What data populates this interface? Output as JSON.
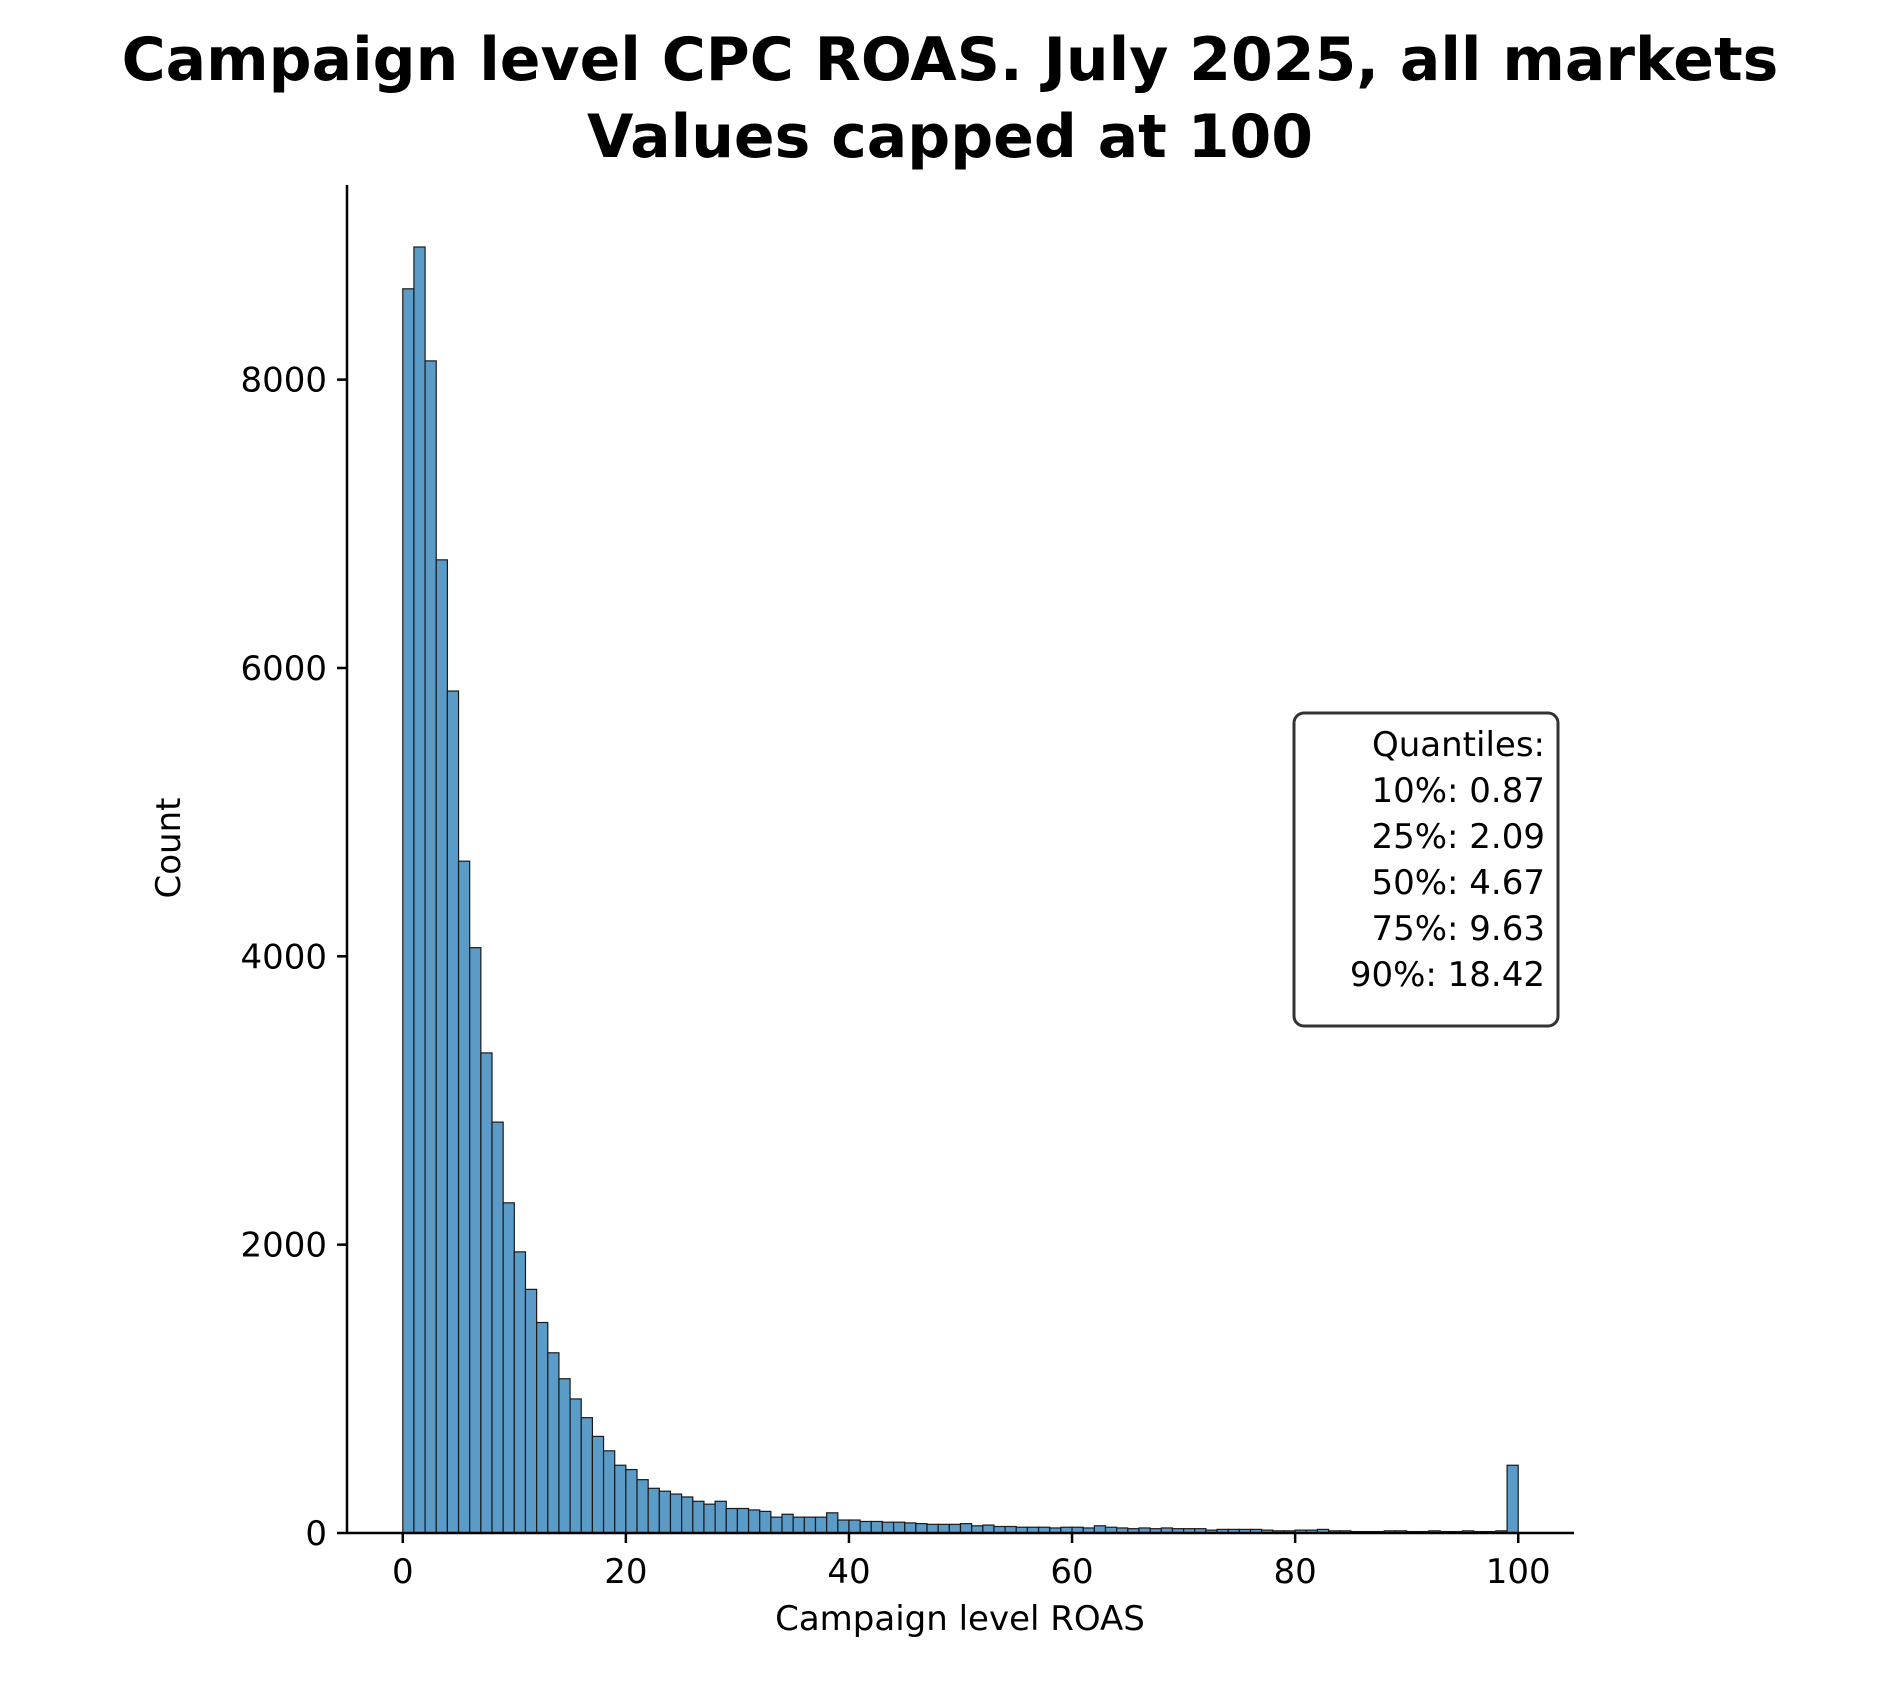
{
  "chart_data": {
    "type": "histogram",
    "title_line1": "Campaign level CPC ROAS. July 2025, all markets",
    "title_line2": "Values capped at 100",
    "xlabel": "Campaign level ROAS",
    "ylabel": "Count",
    "xlim": [
      -5,
      105
    ],
    "ylim": [
      0,
      9350
    ],
    "xticks": [
      0,
      20,
      40,
      60,
      80,
      100
    ],
    "yticks": [
      0,
      2000,
      4000,
      6000,
      8000
    ],
    "bin_start": 0,
    "bin_width": 1,
    "bar_color": "#5b9bc8",
    "edge_color": "#1a1a1a",
    "values": [
      8630,
      8920,
      8130,
      6750,
      5840,
      4660,
      4060,
      3330,
      2850,
      2290,
      1950,
      1690,
      1460,
      1250,
      1070,
      930,
      800,
      670,
      570,
      470,
      440,
      370,
      310,
      290,
      270,
      250,
      220,
      200,
      220,
      170,
      170,
      160,
      150,
      110,
      130,
      110,
      110,
      110,
      140,
      90,
      90,
      80,
      80,
      75,
      75,
      70,
      65,
      60,
      60,
      60,
      65,
      50,
      55,
      45,
      45,
      40,
      40,
      40,
      35,
      40,
      40,
      35,
      50,
      40,
      35,
      30,
      35,
      30,
      35,
      30,
      30,
      30,
      20,
      25,
      25,
      25,
      25,
      20,
      15,
      15,
      20,
      20,
      25,
      15,
      15,
      10,
      10,
      10,
      15,
      15,
      10,
      10,
      15,
      10,
      10,
      15,
      10,
      10,
      15,
      470
    ]
  },
  "quantiles": {
    "header": "Quantiles:",
    "lines": [
      "10%: 0.87",
      "25%: 2.09",
      "50%: 4.67",
      "75%: 9.63",
      "90%: 18.42"
    ]
  }
}
